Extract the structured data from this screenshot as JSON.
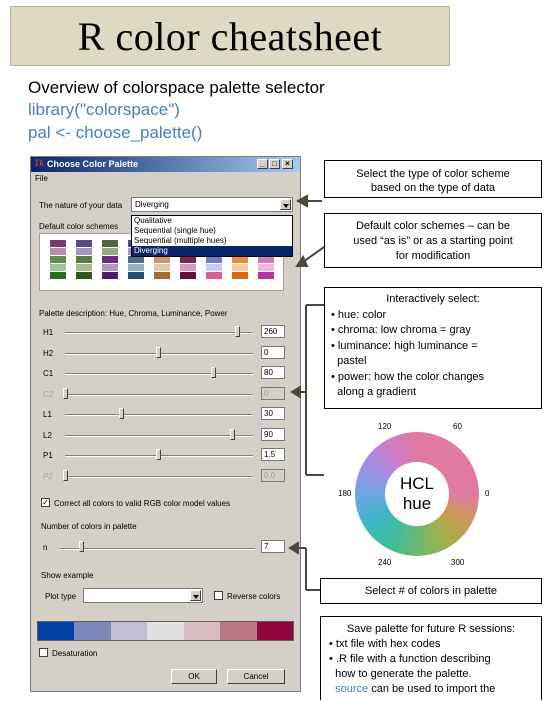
{
  "banner": {
    "title": "R color cheatsheet"
  },
  "intro": {
    "subtitle": "Overview of colorspace palette selector",
    "code_line1": "library(\"colorspace\")",
    "code_line2": "pal <- choose_palette()"
  },
  "dialog": {
    "title": "Choose Color Palette",
    "menu": {
      "file": "File"
    },
    "nature_label": "The nature of your data",
    "nature_value": "Diverging",
    "nature_options": [
      "Qualitative",
      "Sequential (single hue)",
      "Sequential (multiple hues)",
      "Diverging"
    ],
    "default_schemes_label": "Default color schemes",
    "palette_desc_label": "Palette description: Hue, Chroma, Luminance, Power",
    "sliders": [
      {
        "label": "H1",
        "value": "260",
        "level": 0.93,
        "disabled": false
      },
      {
        "label": "H2",
        "value": "0",
        "level": 0.5,
        "disabled": false
      },
      {
        "label": "C1",
        "value": "80",
        "level": 0.8,
        "disabled": false
      },
      {
        "label": "C2",
        "value": "0",
        "level": 0.0,
        "disabled": true
      },
      {
        "label": "L1",
        "value": "30",
        "level": 0.3,
        "disabled": false
      },
      {
        "label": "L2",
        "value": "90",
        "level": 0.9,
        "disabled": false
      },
      {
        "label": "P1",
        "value": "1.5",
        "level": 0.5,
        "disabled": false
      },
      {
        "label": "P2",
        "value": "0.0",
        "level": 0.0,
        "disabled": true
      }
    ],
    "correct_colors_label": "Correct all colors to valid RGB color model values",
    "correct_colors_checked": "✓",
    "num_colors_label": "Number of colors in palette",
    "n_label": "n",
    "n_value": "7",
    "n_level": 0.1,
    "show_example_label": "Show example",
    "plot_type_label": "Plot type",
    "plot_type_value": "",
    "reverse_label": "Reverse colors",
    "palette_colors": [
      "#023fa5",
      "#7d87b9",
      "#bec1d4",
      "#e2e2e2",
      "#d6bcc0",
      "#bb7784",
      "#8e063b"
    ],
    "desaturation_label": "Desaturation",
    "ok_label": "OK",
    "cancel_label": "Cancel",
    "scheme_swatches": [
      [
        "#7e3a6a",
        "#b590ab",
        "#5f8d4a",
        "#a1c296",
        "#2a6d1e"
      ],
      [
        "#5a4b7f",
        "#a198bd",
        "#5e7c3d",
        "#a7bc8f",
        "#2f5a1a"
      ],
      [
        "#4b6a3b",
        "#92ad84",
        "#6b2f77",
        "#b692c0",
        "#4a1e60"
      ],
      [
        "#4c4d86",
        "#9c9dc3",
        "#4a6e8f",
        "#98b3c8",
        "#2a4f75"
      ],
      [
        "#5f6bb0",
        "#a5acd9",
        "#c99a6a",
        "#e1c9aa",
        "#a56a31"
      ],
      [
        "#0c3c8e",
        "#8fa0d0",
        "#7e2356",
        "#d29bbc",
        "#620d3c"
      ],
      [
        "#d9d9f0",
        "#f0d9e6",
        "#6a7fcf",
        "#c7cdf0",
        "#d95c92"
      ],
      [
        "#e9e9e9",
        "#f2dcc4",
        "#ef8f2e",
        "#f7caa0",
        "#d96a10"
      ],
      [
        "#f4d7f0",
        "#eadfea",
        "#d774c2",
        "#efb7e2",
        "#b6349c"
      ]
    ]
  },
  "callouts": {
    "type": [
      "Select the type of color scheme",
      "based on the type of data"
    ],
    "defaults": [
      "Default color schemes – can be",
      "used “as is” or as a starting point",
      "for modification"
    ],
    "interactive_title": "Interactively select:",
    "interactive_items": [
      [
        "• hue: color"
      ],
      [
        "• chroma: low chroma = gray"
      ],
      [
        "• luminance: high luminance =",
        "  pastel"
      ],
      [
        "• power: how the color changes",
        "  along a gradient"
      ]
    ],
    "ncolors": "Select # of colors in palette",
    "save_title": "Save palette for future R sessions:",
    "save_items": [
      [
        "• txt file with hex codes"
      ],
      [
        "• .R file with a function describing",
        "  how to generate the palette."
      ]
    ],
    "save_source_word": "source",
    "save_source_rest": " can be used to import the"
  },
  "wheel": {
    "line1": "HCL",
    "line2": "hue",
    "ticks": [
      "120",
      "60",
      "180",
      "0",
      "240",
      "300"
    ]
  }
}
